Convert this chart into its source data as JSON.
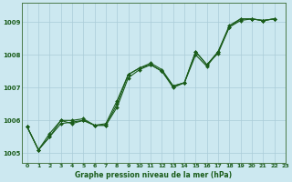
{
  "title": "Graphe pression niveau de la mer (hPa)",
  "background_color": "#cce8f0",
  "line_color": "#1a5c1a",
  "grid_color": "#aaccd8",
  "xlim": [
    -0.5,
    23
  ],
  "ylim": [
    1004.7,
    1009.6
  ],
  "yticks": [
    1005,
    1006,
    1007,
    1008,
    1009
  ],
  "xticks": [
    0,
    1,
    2,
    3,
    4,
    5,
    6,
    7,
    8,
    9,
    10,
    11,
    12,
    13,
    14,
    15,
    16,
    17,
    18,
    19,
    20,
    21,
    22,
    23
  ],
  "series1_x": [
    0,
    1,
    2,
    3,
    4,
    5,
    6,
    7,
    8,
    9,
    10,
    11,
    12,
    13,
    14,
    15,
    16,
    17,
    18,
    19,
    20,
    21,
    22
  ],
  "series1": [
    1005.8,
    1005.1,
    1005.5,
    1005.9,
    1005.95,
    1006.0,
    1005.85,
    1005.85,
    1006.4,
    1007.3,
    1007.55,
    1007.7,
    1007.5,
    1007.05,
    1007.15,
    1008.1,
    1007.7,
    1008.05,
    1008.85,
    1009.1,
    1009.1,
    1009.05,
    1009.1
  ],
  "series2": [
    1005.8,
    1005.1,
    1005.5,
    1006.0,
    1005.9,
    1006.0,
    1005.85,
    1005.85,
    1006.5,
    1007.4,
    1007.6,
    1007.7,
    1007.5,
    1007.0,
    1007.15,
    1008.0,
    1007.65,
    1008.1,
    1008.85,
    1009.05,
    1009.1,
    1009.05,
    1009.1
  ],
  "series3": [
    1005.8,
    1005.1,
    1005.6,
    1006.0,
    1006.0,
    1006.05,
    1005.85,
    1005.9,
    1006.6,
    1007.4,
    1007.6,
    1007.75,
    1007.55,
    1007.05,
    1007.15,
    1008.1,
    1007.7,
    1008.1,
    1008.9,
    1009.1,
    1009.1,
    1009.05,
    1009.1
  ],
  "title_fontsize": 5.5,
  "tick_fontsize": 4.5,
  "ytick_fontsize": 5.0,
  "linewidth": 0.8,
  "markersize": 2.0
}
